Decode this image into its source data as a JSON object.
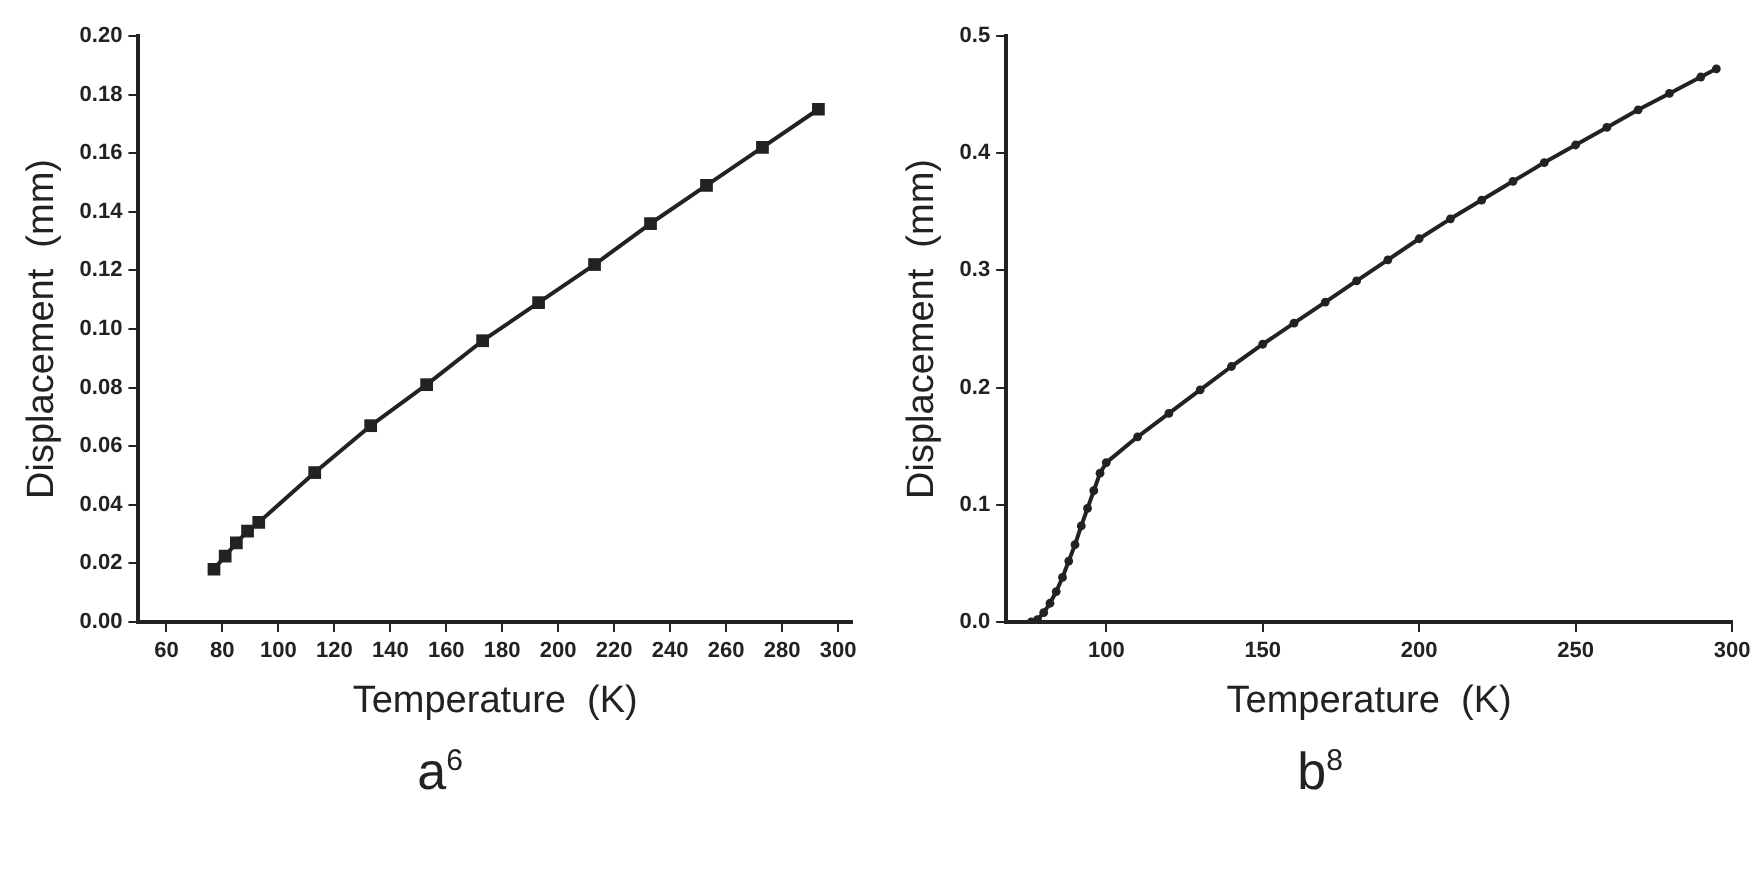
{
  "chart_data": [
    {
      "type": "line",
      "title": "a$^{6}$",
      "xlabel": "Temperature  (K)",
      "ylabel": "Displacement  (mm)",
      "marker": "square",
      "line_style": "solid",
      "grid": false,
      "legend": false,
      "xlim": [
        50,
        305
      ],
      "xticks": [
        60,
        80,
        100,
        120,
        140,
        160,
        180,
        200,
        220,
        240,
        260,
        280,
        300
      ],
      "ylim": [
        0,
        0.2
      ],
      "yticks": [
        {
          "value": 0,
          "label": "0.00"
        },
        0.02,
        0.04,
        0.06,
        0.08,
        {
          "value": 0.1,
          "label": "0.10"
        },
        0.12,
        0.14,
        0.16,
        0.18,
        {
          "value": 0.2,
          "label": "0.20"
        }
      ],
      "series": [
        {
          "color": "#222222",
          "x": [
            77,
            81,
            85,
            89,
            93,
            113,
            133,
            153,
            173,
            193,
            213,
            233,
            253,
            273,
            293
          ],
          "values": [
            0.018,
            0.0225,
            0.027,
            0.031,
            0.034,
            0.051,
            0.067,
            0.081,
            0.096,
            0.109,
            0.122,
            0.136,
            0.149,
            0.162,
            0.175
          ]
        }
      ]
    },
    {
      "type": "line",
      "title": "b$^{8}$",
      "xlabel": "Temperature  (K)",
      "ylabel": "Displacement  (mm)",
      "marker": "circle",
      "line_style": "solid",
      "grid": false,
      "legend": false,
      "xlim": [
        68,
        300
      ],
      "xticks": [
        100,
        150,
        200,
        250,
        300
      ],
      "ylim": [
        0,
        0.5
      ],
      "yticks": [
        {
          "value": 0,
          "label": "0.0"
        },
        0.1,
        0.2,
        0.3,
        0.4,
        0.5
      ],
      "series": [
        {
          "color": "#222222",
          "x": [
            76,
            78,
            80,
            82,
            84,
            86,
            88,
            90,
            92,
            94,
            96,
            98,
            100,
            110,
            120,
            130,
            140,
            150,
            160,
            170,
            180,
            190,
            200,
            210,
            220,
            230,
            240,
            250,
            260,
            270,
            280,
            290,
            295
          ],
          "values": [
            0,
            0.002,
            0.008,
            0.016,
            0.026,
            0.038,
            0.052,
            0.066,
            0.082,
            0.097,
            0.112,
            0.127,
            0.136,
            0.158,
            0.178,
            0.198,
            0.218,
            0.237,
            0.255,
            0.273,
            0.291,
            0.309,
            0.327,
            0.344,
            0.36,
            0.376,
            0.392,
            0.407,
            0.422,
            0.437,
            0.451,
            0.465,
            0.472
          ]
        }
      ]
    }
  ]
}
